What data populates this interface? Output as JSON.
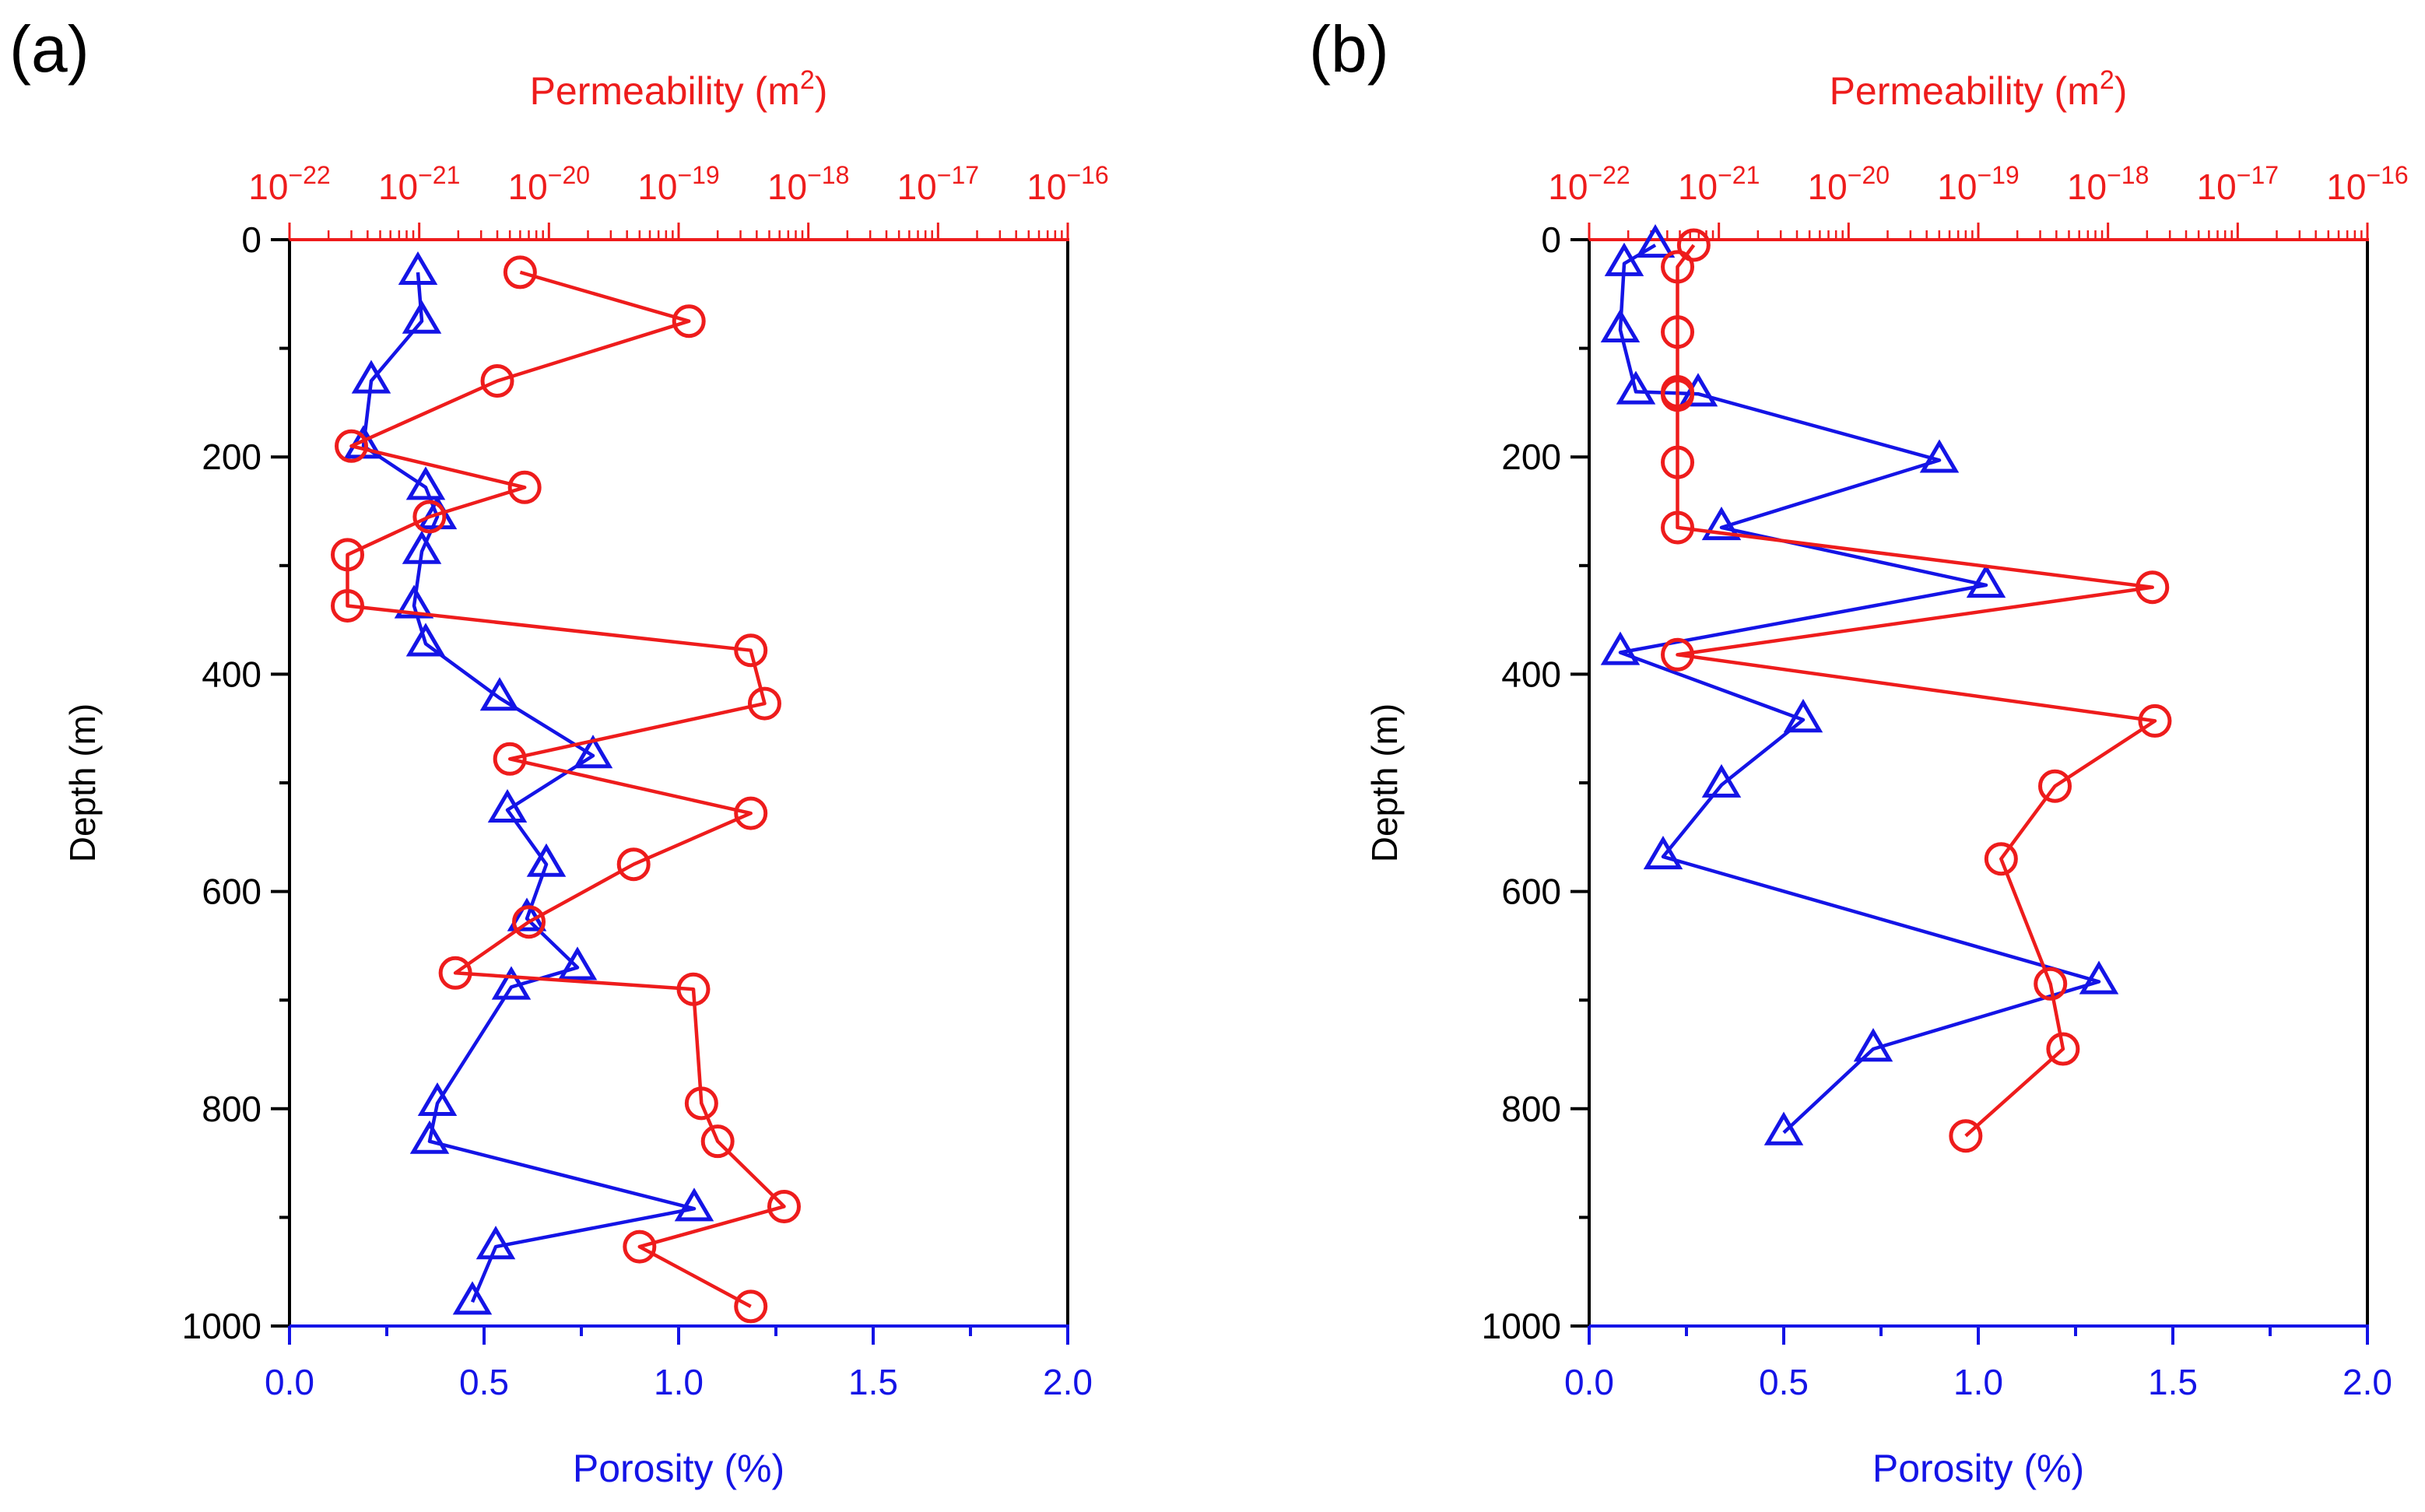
{
  "chart_data": [
    {
      "type": "scatter",
      "panel_label": "(a)",
      "ylabel": "Depth (m)",
      "ylim": [
        0,
        1000
      ],
      "yticks": [
        "0",
        "200",
        "400",
        "600",
        "800",
        "1000"
      ],
      "x_bottom": {
        "label": "Porosity (%)",
        "lim": [
          0,
          2
        ],
        "ticks": [
          "0.0",
          "0.5",
          "1.0",
          "1.5",
          "2.0"
        ],
        "color": "#1414e6"
      },
      "x_top": {
        "label_text": "Permeability (m",
        "label_sup": "2",
        "label_close": ")",
        "scale": "log",
        "lim_exponent": [
          -22,
          -16
        ],
        "tick_base": "10",
        "tick_exponents": [
          "−22",
          "−21",
          "−20",
          "−19",
          "−18",
          "−17",
          "−16"
        ],
        "color": "#ee1c1c"
      },
      "series": [
        {
          "axis": "bottom",
          "marker": "triangle",
          "color": "#1414e6",
          "x": [
            0.33,
            0.34,
            0.21,
            0.19,
            0.35,
            0.38,
            0.34,
            0.32,
            0.35,
            0.54,
            0.78,
            0.56,
            0.66,
            0.61,
            0.74,
            0.57,
            0.38,
            0.36,
            1.04,
            0.53,
            0.47
          ],
          "y": [
            30,
            75,
            130,
            190,
            228,
            255,
            287,
            337,
            372,
            422,
            475,
            525,
            575,
            625,
            670,
            688,
            795,
            830,
            892,
            927,
            978
          ]
        },
        {
          "axis": "top",
          "marker": "circle",
          "color": "#ee1c1c",
          "x": [
            6e-21,
            1.2e-19,
            4e-21,
            3e-22,
            6.5e-21,
            1.2e-21,
            2.8e-22,
            2.8e-22,
            3.6e-19,
            4.6e-19,
            5e-21,
            3.6e-19,
            4.5e-20,
            7e-21,
            1.9e-21,
            1.3e-19,
            1.5e-19,
            2e-19,
            6.5e-19,
            5e-20,
            3.6e-19
          ],
          "y": [
            30,
            75,
            130,
            190,
            228,
            255,
            290,
            337,
            378,
            427,
            478,
            528,
            575,
            628,
            675,
            690,
            795,
            830,
            890,
            927,
            982
          ]
        }
      ]
    },
    {
      "type": "scatter",
      "panel_label": "(b)",
      "ylabel": "Depth (m)",
      "ylim": [
        0,
        1000
      ],
      "yticks": [
        "0",
        "200",
        "400",
        "600",
        "800",
        "1000"
      ],
      "x_bottom": {
        "label": "Porosity (%)",
        "lim": [
          0,
          2
        ],
        "ticks": [
          "0.0",
          "0.5",
          "1.0",
          "1.5",
          "2.0"
        ],
        "color": "#1414e6"
      },
      "x_top": {
        "label_text": "Permeability (m",
        "label_sup": "2",
        "label_close": ")",
        "scale": "log",
        "lim_exponent": [
          -22,
          -16
        ],
        "tick_base": "10",
        "tick_exponents": [
          "−22",
          "−21",
          "−20",
          "−19",
          "−18",
          "−17",
          "−16"
        ],
        "color": "#ee1c1c"
      },
      "series": [
        {
          "axis": "bottom",
          "marker": "triangle",
          "color": "#1414e6",
          "x": [
            0.17,
            0.09,
            0.08,
            0.12,
            0.28,
            0.9,
            0.34,
            1.02,
            0.08,
            0.55,
            0.34,
            0.19,
            1.31,
            0.73,
            0.5
          ],
          "y": [
            5,
            22,
            83,
            140,
            142,
            203,
            265,
            318,
            380,
            442,
            502,
            568,
            683,
            745,
            822
          ]
        },
        {
          "axis": "top",
          "marker": "circle",
          "color": "#ee1c1c",
          "x": [
            6.4e-22,
            4.8e-22,
            4.8e-22,
            4.8e-22,
            4.8e-22,
            4.8e-22,
            4.8e-22,
            2.2e-18,
            4.8e-22,
            2.3e-18,
            3.9e-19,
            1.5e-19,
            3.6e-19,
            4.5e-19,
            8e-20
          ],
          "y": [
            5,
            25,
            85,
            140,
            143,
            205,
            265,
            320,
            382,
            443,
            503,
            570,
            685,
            745,
            825
          ]
        }
      ]
    }
  ]
}
